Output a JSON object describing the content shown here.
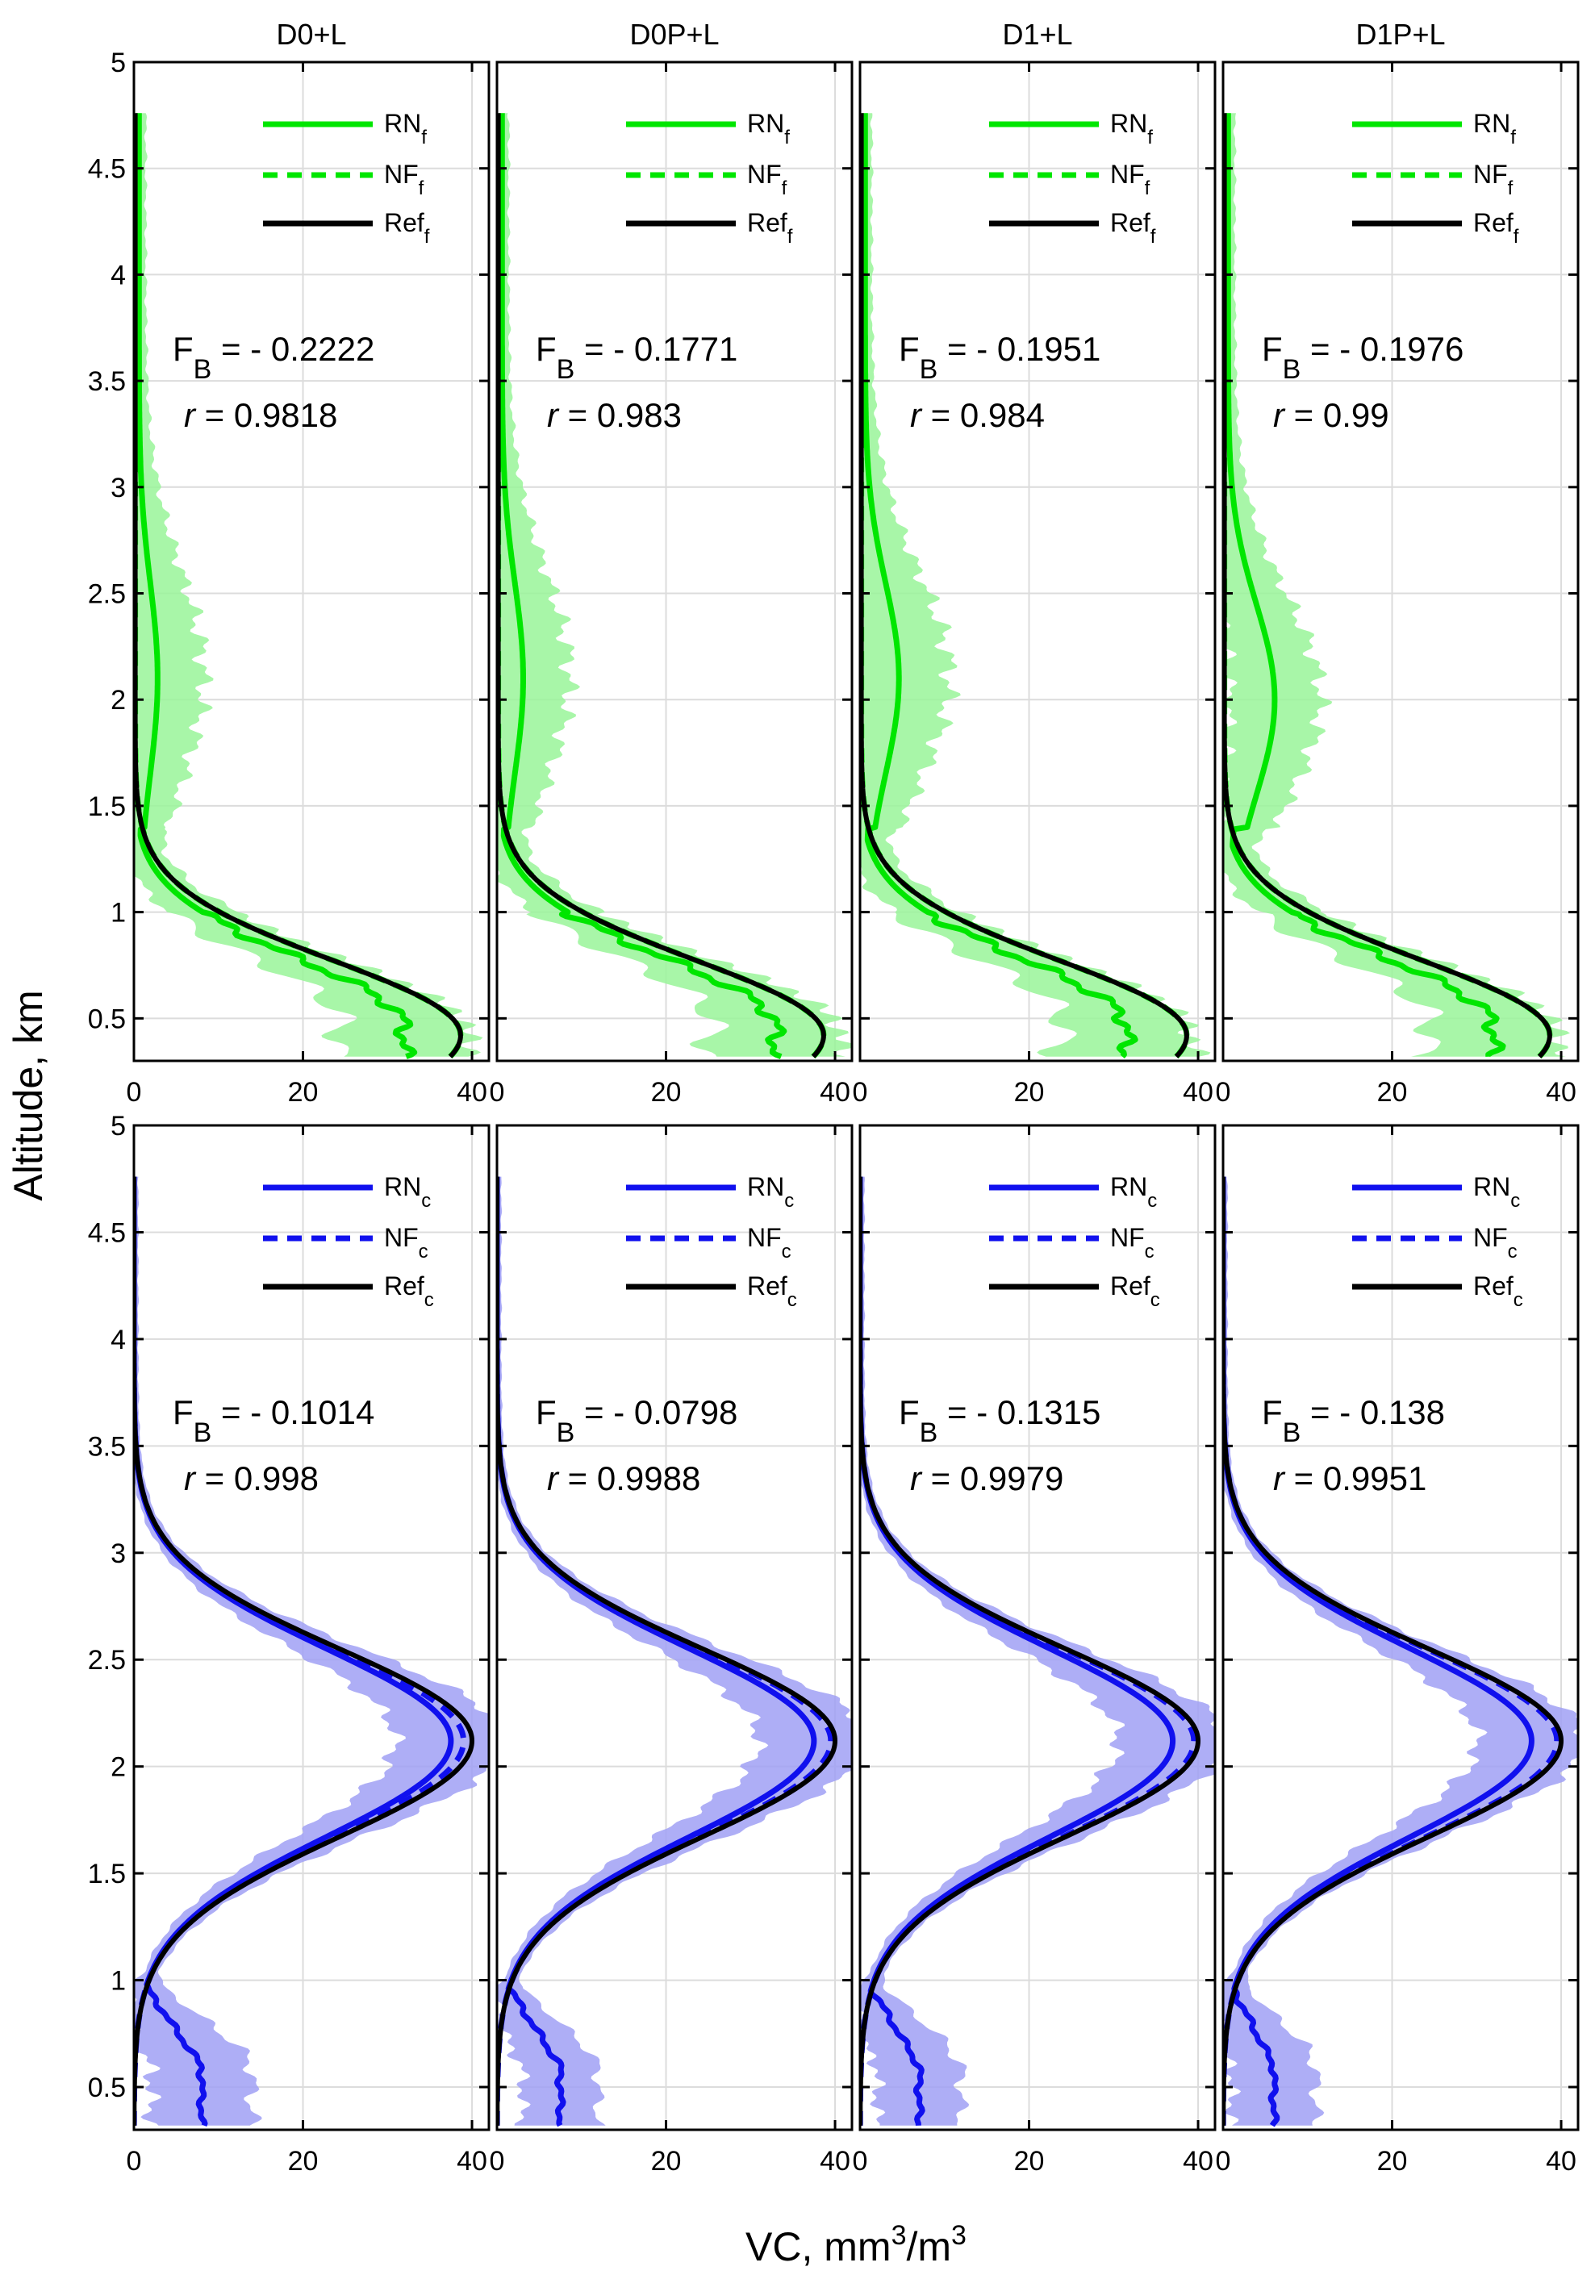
{
  "figure": {
    "ylabel": "Altitude, km",
    "xlabel_main": "VC, mm",
    "xlabel_sup1": "3",
    "xlabel_mid": "/m",
    "xlabel_sup2": "3"
  },
  "colors": {
    "fine": "#00e600",
    "fine_band": "#99f599",
    "coarse": "#1010ee",
    "coarse_band": "#a0a0f5",
    "ref": "#000000"
  },
  "chart_data": [
    {
      "type": "line",
      "panel": "D0+L",
      "title": "D0+L",
      "mode": "fine",
      "fb_value": "- 0.2222",
      "r_value": "0.9818",
      "legend": [
        {
          "base": "RN",
          "sub": "f"
        },
        {
          "base": "NF",
          "sub": "f"
        },
        {
          "base": "Ref",
          "sub": "f"
        }
      ],
      "xlim": [
        0,
        42
      ],
      "ylim": [
        0.3,
        5
      ],
      "xticks": [
        0,
        20,
        40
      ],
      "yticks": [
        0.5,
        1,
        1.5,
        2,
        2.5,
        3,
        3.5,
        4,
        4.5,
        5
      ],
      "ytick_labels": [
        "0.5",
        "1",
        "1.5",
        "2",
        "2.5",
        "3",
        "3.5",
        "4",
        "4.5",
        "5"
      ],
      "show_ytick_labels": true,
      "params": {
        "refPeak": 38.5,
        "rnPeak": 32.0,
        "rnUpper": 2.2,
        "bandRn": 1.8,
        "upperPeakAlt": 2.1
      }
    },
    {
      "type": "line",
      "panel": "D0P+L",
      "title": "D0P+L",
      "mode": "fine",
      "fb_value": "- 0.1771",
      "r_value": "0.983",
      "legend": [
        {
          "base": "RN",
          "sub": "f"
        },
        {
          "base": "NF",
          "sub": "f"
        },
        {
          "base": "Ref",
          "sub": "f"
        }
      ],
      "xlim": [
        0,
        42
      ],
      "ylim": [
        0.3,
        5
      ],
      "xticks": [
        0,
        20,
        40
      ],
      "yticks": [
        0.5,
        1,
        1.5,
        2,
        2.5,
        3,
        3.5,
        4,
        4.5,
        5
      ],
      "ytick_labels": [
        "0.5",
        "1",
        "1.5",
        "2",
        "2.5",
        "3",
        "3.5",
        "4",
        "4.5",
        "5"
      ],
      "show_ytick_labels": false,
      "params": {
        "refPeak": 38.5,
        "rnPeak": 33.0,
        "rnUpper": 2.5,
        "bandRn": 1.8,
        "upperPeakAlt": 2.1
      }
    },
    {
      "type": "line",
      "panel": "D1+L",
      "title": "D1+L",
      "mode": "fine",
      "fb_value": "- 0.1951",
      "r_value": "0.984",
      "legend": [
        {
          "base": "RN",
          "sub": "f"
        },
        {
          "base": "NF",
          "sub": "f"
        },
        {
          "base": "Ref",
          "sub": "f"
        }
      ],
      "xlim": [
        0,
        42
      ],
      "ylim": [
        0.3,
        5
      ],
      "xticks": [
        0,
        20,
        40
      ],
      "yticks": [
        0.5,
        1,
        1.5,
        2,
        2.5,
        3,
        3.5,
        4,
        4.5,
        5
      ],
      "ytick_labels": [
        "0.5",
        "1",
        "1.5",
        "2",
        "2.5",
        "3",
        "3.5",
        "4",
        "4.5",
        "5"
      ],
      "show_ytick_labels": false,
      "params": {
        "refPeak": 38.5,
        "rnPeak": 31.5,
        "rnUpper": 4.0,
        "bandRn": 2.0,
        "upperPeakAlt": 2.1
      }
    },
    {
      "type": "line",
      "panel": "D1P+L",
      "title": "D1P+L",
      "mode": "fine",
      "fb_value": "- 0.1976",
      "r_value": "0.99",
      "legend": [
        {
          "base": "RN",
          "sub": "f"
        },
        {
          "base": "NF",
          "sub": "f"
        },
        {
          "base": "Ref",
          "sub": "f"
        }
      ],
      "xlim": [
        0,
        42
      ],
      "ylim": [
        0.3,
        5
      ],
      "xticks": [
        0,
        20,
        40
      ],
      "yticks": [
        0.5,
        1,
        1.5,
        2,
        2.5,
        3,
        3.5,
        4,
        4.5,
        5
      ],
      "ytick_labels": [
        "0.5",
        "1",
        "1.5",
        "2",
        "2.5",
        "3",
        "3.5",
        "4",
        "4.5",
        "5"
      ],
      "show_ytick_labels": false,
      "params": {
        "refPeak": 38.5,
        "rnPeak": 32.0,
        "rnUpper": 5.5,
        "bandRn": 1.8,
        "upperPeakAlt": 2.0
      }
    },
    {
      "type": "line",
      "panel": "D0+L coarse",
      "title": "",
      "mode": "coarse",
      "fb_value": "- 0.1014",
      "r_value": "0.998",
      "legend": [
        {
          "base": "RN",
          "sub": "c"
        },
        {
          "base": "NF",
          "sub": "c"
        },
        {
          "base": "Ref",
          "sub": "c"
        }
      ],
      "xlim": [
        0,
        42
      ],
      "ylim": [
        0.3,
        5
      ],
      "xticks": [
        0,
        20,
        40
      ],
      "yticks": [
        0.5,
        1,
        1.5,
        2,
        2.5,
        3,
        3.5,
        4,
        4.5,
        5
      ],
      "ytick_labels": [
        "0.5",
        "1",
        "1.5",
        "2",
        "2.5",
        "3",
        "3.5",
        "4",
        "4.5",
        "5"
      ],
      "show_ytick_labels": true,
      "params": {
        "refPeak": 40.0,
        "rnPeak": 37.5,
        "nfPeak": 39.0,
        "rnLow": 8.0,
        "bandLow": 14.0,
        "bandPeak": 42.5
      }
    },
    {
      "type": "line",
      "panel": "D0P+L coarse",
      "title": "",
      "mode": "coarse",
      "fb_value": "- 0.0798",
      "r_value": "0.9988",
      "legend": [
        {
          "base": "RN",
          "sub": "c"
        },
        {
          "base": "NF",
          "sub": "c"
        },
        {
          "base": "Ref",
          "sub": "c"
        }
      ],
      "xlim": [
        0,
        42
      ],
      "ylim": [
        0.3,
        5
      ],
      "xticks": [
        0,
        20,
        40
      ],
      "yticks": [
        0.5,
        1,
        1.5,
        2,
        2.5,
        3,
        3.5,
        4,
        4.5,
        5
      ],
      "ytick_labels": [
        "0.5",
        "1",
        "1.5",
        "2",
        "2.5",
        "3",
        "3.5",
        "4",
        "4.5",
        "5"
      ],
      "show_ytick_labels": false,
      "params": {
        "refPeak": 40.0,
        "rnPeak": 37.5,
        "nfPeak": 39.5,
        "rnLow": 7.5,
        "bandLow": 12.0,
        "bandPeak": 42.5
      }
    },
    {
      "type": "line",
      "panel": "D1+L coarse",
      "title": "",
      "mode": "coarse",
      "fb_value": "- 0.1315",
      "r_value": "0.9979",
      "legend": [
        {
          "base": "RN",
          "sub": "c"
        },
        {
          "base": "NF",
          "sub": "c"
        },
        {
          "base": "Ref",
          "sub": "c"
        }
      ],
      "xlim": [
        0,
        42
      ],
      "ylim": [
        0.3,
        5
      ],
      "xticks": [
        0,
        20,
        40
      ],
      "yticks": [
        0.5,
        1,
        1.5,
        2,
        2.5,
        3,
        3.5,
        4,
        4.5,
        5
      ],
      "ytick_labels": [
        "0.5",
        "1",
        "1.5",
        "2",
        "2.5",
        "3",
        "3.5",
        "4",
        "4.5",
        "5"
      ],
      "show_ytick_labels": false,
      "params": {
        "refPeak": 40.0,
        "rnPeak": 37.0,
        "nfPeak": 39.5,
        "rnLow": 7.0,
        "bandLow": 12.0,
        "bandPeak": 42.0
      }
    },
    {
      "type": "line",
      "panel": "D1P+L coarse",
      "title": "",
      "mode": "coarse",
      "fb_value": "- 0.138",
      "r_value": "0.9951",
      "legend": [
        {
          "base": "RN",
          "sub": "c"
        },
        {
          "base": "NF",
          "sub": "c"
        },
        {
          "base": "Ref",
          "sub": "c"
        }
      ],
      "xlim": [
        0,
        42
      ],
      "ylim": [
        0.3,
        5
      ],
      "xticks": [
        0,
        20,
        40
      ],
      "yticks": [
        0.5,
        1,
        1.5,
        2,
        2.5,
        3,
        3.5,
        4,
        4.5,
        5
      ],
      "ytick_labels": [
        "0.5",
        "1",
        "1.5",
        "2",
        "2.5",
        "3",
        "3.5",
        "4",
        "4.5",
        "5"
      ],
      "show_ytick_labels": false,
      "params": {
        "refPeak": 40.0,
        "rnPeak": 36.5,
        "nfPeak": 39.5,
        "rnLow": 6.0,
        "bandLow": 11.0,
        "bandPeak": 43.0
      }
    }
  ]
}
